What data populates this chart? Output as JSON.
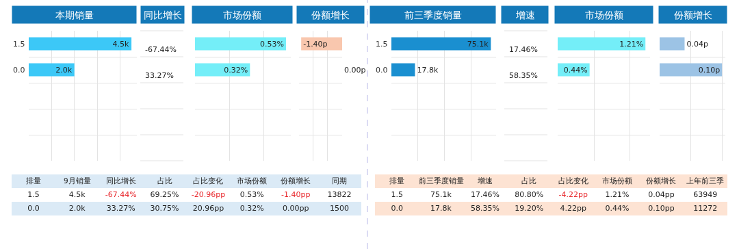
{
  "chart_data": [
    {
      "type": "bar",
      "orientation": "horizontal",
      "title": "本期销量",
      "categories": [
        "1.5",
        "0.0",
        null,
        null,
        null
      ],
      "values": [
        4500,
        2000,
        null,
        null,
        null
      ],
      "value_labels": [
        "4.5k",
        "2.0k",
        null,
        null,
        null
      ],
      "color": "#3cc8f7",
      "grid": true,
      "tick_labels": "y"
    },
    {
      "type": "other",
      "title": "同比增长",
      "annotations": [
        "-67.44%",
        "33.27%"
      ]
    },
    {
      "type": "bar",
      "orientation": "horizontal",
      "title": "市场份额",
      "categories": [
        "1.5",
        "0.0",
        null,
        null,
        null
      ],
      "values": [
        0.53,
        0.32,
        null,
        null,
        null
      ],
      "value_labels": [
        "0.53%",
        "0.32%",
        null,
        null,
        null
      ],
      "color": "#74eef8",
      "grid": true,
      "tick_labels": false
    },
    {
      "type": "bar",
      "orientation": "horizontal",
      "title": "份额增长",
      "categories": [
        "1.5",
        "0.0",
        null,
        null,
        null
      ],
      "values": [
        -1.4,
        0.0,
        null,
        null,
        null
      ],
      "value_labels": [
        "-1.40p",
        "0.00p",
        null,
        null,
        null
      ],
      "color": "#f9c7ae",
      "grid": true,
      "tick_labels": false
    },
    {
      "type": "bar",
      "orientation": "horizontal",
      "title": "前三季度销量",
      "categories": [
        "1.5",
        "0.0",
        null,
        null,
        null
      ],
      "values": [
        75100,
        17800,
        null,
        null,
        null
      ],
      "value_labels": [
        "75.1k",
        "17.8k",
        null,
        null,
        null
      ],
      "color": "#1a8fd0",
      "grid": true,
      "tick_labels": "y"
    },
    {
      "type": "other",
      "title": "增速",
      "annotations": [
        "17.46%",
        "58.35%"
      ]
    },
    {
      "type": "bar",
      "orientation": "horizontal",
      "title": "市场份额",
      "categories": [
        "1.5",
        "0.0",
        null,
        null,
        null
      ],
      "values": [
        1.21,
        0.44,
        null,
        null,
        null
      ],
      "value_labels": [
        "1.21%",
        "0.44%",
        null,
        null,
        null
      ],
      "color": "#74eef8",
      "grid": true,
      "tick_labels": false
    },
    {
      "type": "bar",
      "orientation": "horizontal",
      "title": "份额增长",
      "categories": [
        "1.5",
        "0.0",
        null,
        null,
        null
      ],
      "values": [
        0.04,
        0.1,
        null,
        null,
        null
      ],
      "value_labels": [
        "0.04p",
        "0.10p",
        null,
        null,
        null
      ],
      "color": "#9cc3e5",
      "grid": true,
      "tick_labels": false
    },
    {
      "type": "other",
      "categories": [
        "排量",
        "9月销量",
        "同比增长",
        "占比",
        "占比变化",
        "市场份额",
        "份额增长",
        "同期"
      ],
      "color": "#dbeaf6",
      "series": [
        {
          "values": [
            1.5,
            4500,
            -67.44,
            69.25,
            -20.96,
            0.53,
            -1.4,
            13822
          ],
          "value_labels": [
            "1.5",
            "4.5k",
            "-67.44%",
            "69.25%",
            "-20.96pp",
            "0.53%",
            "-1.40pp",
            "13822"
          ]
        },
        {
          "values": [
            0.0,
            2000,
            33.27,
            30.75,
            20.96,
            0.32,
            0.0,
            1500
          ],
          "value_labels": [
            "0.0",
            "2.0k",
            "33.27%",
            "30.75%",
            "20.96pp",
            "0.32%",
            "0.00pp",
            "1500"
          ]
        }
      ]
    },
    {
      "type": "other",
      "categories": [
        "排量",
        "前三季度销量",
        "增速",
        "占比",
        "占比变化",
        "市场份额",
        "份额增长",
        "上年前三季"
      ],
      "color": "#fde3d3",
      "series": [
        {
          "values": [
            1.5,
            75100,
            17.46,
            80.8,
            -4.22,
            1.21,
            0.04,
            63949
          ],
          "value_labels": [
            "1.5",
            "75.1k",
            "17.46%",
            "80.80%",
            "-4.22pp",
            "1.21%",
            "0.04pp",
            "63949"
          ]
        },
        {
          "values": [
            0.0,
            17800,
            58.35,
            19.2,
            4.22,
            0.44,
            0.1,
            11272
          ],
          "value_labels": [
            "0.0",
            "17.8k",
            "58.35%",
            "19.20%",
            "4.22pp",
            "0.44%",
            "0.10pp",
            "11272"
          ]
        }
      ]
    }
  ]
}
